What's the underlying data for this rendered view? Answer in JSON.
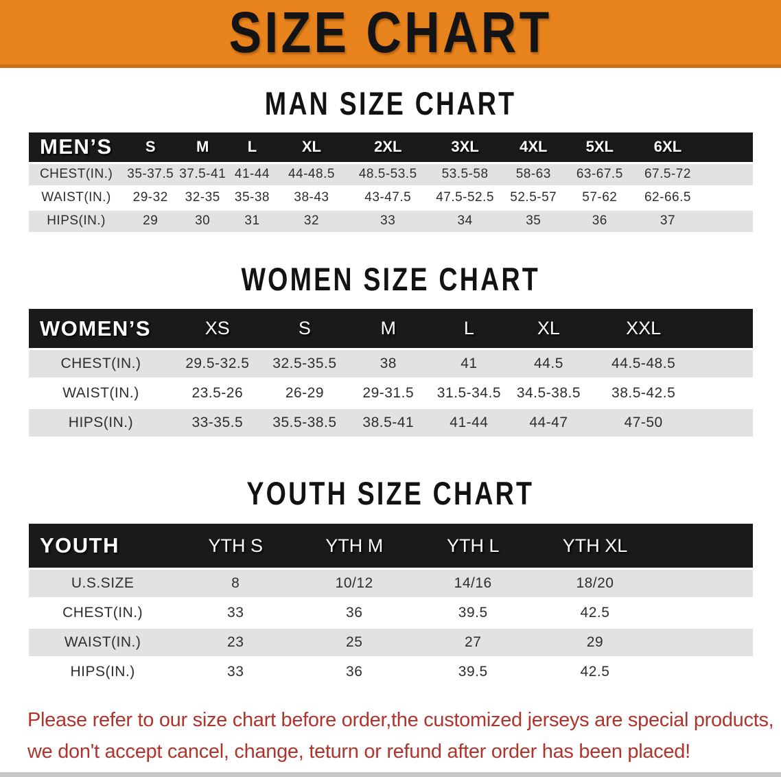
{
  "banner": {
    "title": "SIZE CHART",
    "bg_color": "#E8831D",
    "border_color": "#C96F15"
  },
  "colors": {
    "table_header_bar": "#1A1A1A",
    "row_shade": "#E2E2E2",
    "disclaimer_text": "#B0342C"
  },
  "sections": [
    {
      "heading": "MAN SIZE CHART",
      "table": {
        "label": "MEN’S",
        "sizes": [
          "S",
          "M",
          "L",
          "XL",
          "2XL",
          "3XL",
          "4XL",
          "5XL",
          "6XL"
        ],
        "rows": [
          {
            "label": "CHEST(IN.)",
            "values": [
              "35-37.5",
              "37.5-41",
              "41-44",
              "44-48.5",
              "48.5-53.5",
              "53.5-58",
              "58-63",
              "63-67.5",
              "67.5-72"
            ]
          },
          {
            "label": "WAIST(IN.)",
            "values": [
              "29-32",
              "32-35",
              "35-38",
              "38-43",
              "43-47.5",
              "47.5-52.5",
              "52.5-57",
              "57-62",
              "62-66.5"
            ]
          },
          {
            "label": "HIPS(IN.)",
            "values": [
              "29",
              "30",
              "31",
              "32",
              "33",
              "34",
              "35",
              "36",
              "37"
            ]
          }
        ]
      }
    },
    {
      "heading": "WOMEN SIZE CHART",
      "table": {
        "label": "WOMEN’S",
        "sizes": [
          "XS",
          "S",
          "M",
          "L",
          "XL",
          "XXL"
        ],
        "rows": [
          {
            "label": "CHEST(IN.)",
            "values": [
              "29.5-32.5",
              "32.5-35.5",
              "38",
              "41",
              "44.5",
              "44.5-48.5"
            ]
          },
          {
            "label": "WAIST(IN.)",
            "values": [
              "23.5-26",
              "26-29",
              "29-31.5",
              "31.5-34.5",
              "34.5-38.5",
              "38.5-42.5"
            ]
          },
          {
            "label": "HIPS(IN.)",
            "values": [
              "33-35.5",
              "35.5-38.5",
              "38.5-41",
              "41-44",
              "44-47",
              "47-50"
            ]
          }
        ]
      }
    },
    {
      "heading": "YOUTH SIZE CHART",
      "table": {
        "label": "YOUTH",
        "sizes": [
          "YTH S",
          "YTH M",
          "YTH L",
          "YTH XL"
        ],
        "rows": [
          {
            "label": "U.S.SIZE",
            "values": [
              "8",
              "10/12",
              "14/16",
              "18/20"
            ]
          },
          {
            "label": "CHEST(IN.)",
            "values": [
              "33",
              "36",
              "39.5",
              "42.5"
            ]
          },
          {
            "label": "WAIST(IN.)",
            "values": [
              "23",
              "25",
              "27",
              "29"
            ]
          },
          {
            "label": "HIPS(IN.)",
            "values": [
              "33",
              "36",
              "39.5",
              "42.5"
            ]
          }
        ]
      }
    }
  ],
  "disclaimer": {
    "line1": "Please refer to our size chart before order,the customized jerseys are special products,",
    "line2": "we don't accept cancel, change, teturn or refund after order has been placed!"
  }
}
